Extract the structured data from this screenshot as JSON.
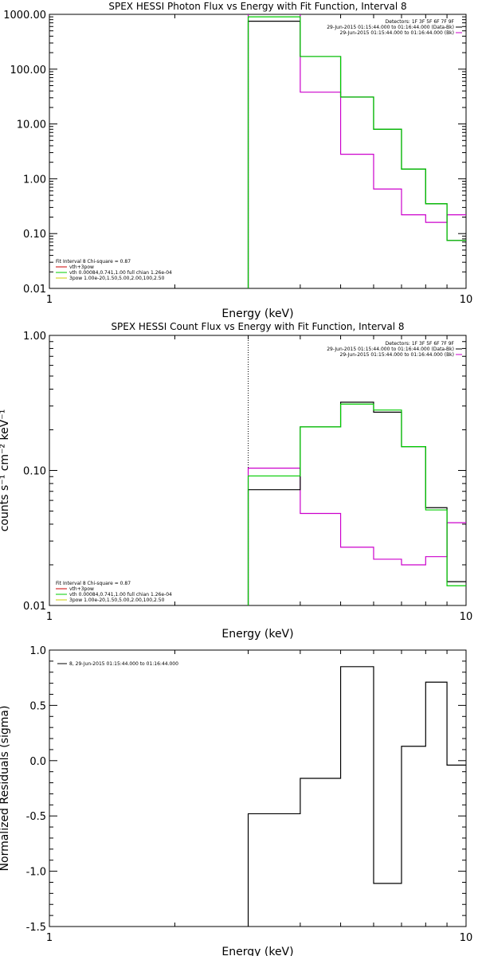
{
  "chart_data": [
    {
      "type": "line",
      "title": "SPEX HESSI Photon Flux vs Energy with Fit Function, Interval 8",
      "xlabel": "Energy (keV)",
      "ylabel": "",
      "xlog": true,
      "ylog": true,
      "xlim": [
        1,
        10
      ],
      "ylim": [
        0.01,
        1000
      ],
      "x_ticks": [
        "1",
        "10"
      ],
      "y_ticks": [
        "0.01",
        "0.10",
        "1.00",
        "10.00",
        "100.00",
        "1000.00"
      ],
      "info_lines": [
        "Detectors: 1F 3F 5F 6F 7F 9F",
        "29-Jun-2015 01:15:44.000 to 01:16:44.000 (Data-Bk)",
        "29-Jun-2015 01:15:44.000 to 01:16:44.000 (Bk)"
      ],
      "fit_lines": [
        "Fit Interval 8   Chi-square = 0.87",
        "vth+3pow",
        "vth 0.00084,0.741,1.00  full chian 1.26e-04",
        "3pow 1.00e-20,1.50,5.00,2.00,100,2.50"
      ],
      "bin_edges": [
        3,
        4,
        5,
        6,
        7,
        8,
        9,
        10
      ],
      "series": [
        {
          "name": "Data-Bk",
          "color": "#000000",
          "values": [
            750,
            170,
            31,
            8,
            1.5,
            0.35,
            0.075
          ]
        },
        {
          "name": "Bk",
          "color": "#cc00cc",
          "values": [
            1050,
            38,
            2.8,
            0.65,
            0.22,
            0.16,
            0.22
          ]
        },
        {
          "name": "vth+3pow",
          "color": "#00cc00",
          "values": [
            900,
            170,
            31,
            8,
            1.5,
            0.35,
            0.075
          ]
        }
      ]
    },
    {
      "type": "line",
      "title": "SPEX HESSI Count Flux vs Energy with Fit Function, Interval 8",
      "xlabel": "Energy (keV)",
      "ylabel": "counts s⁻¹ cm⁻² keV⁻¹",
      "xlog": true,
      "ylog": true,
      "xlim": [
        1,
        10
      ],
      "ylim": [
        0.01,
        1
      ],
      "x_ticks": [
        "1",
        "10"
      ],
      "y_ticks": [
        "0.01",
        "0.10",
        "1.00"
      ],
      "info_lines": [
        "Detectors: 1F 3F 5F 6F 7F 9F",
        "29-Jun-2015 01:15:44.000 to 01:16:44.000 (Data-Bk)",
        "29-Jun-2015 01:15:44.000 to 01:16:44.000 (Bk)"
      ],
      "fit_lines": [
        "Fit Interval 8   Chi-square = 0.87",
        "vth+3pow",
        "vth 0.00084,0.741,1.00  full chian 1.26e-04",
        "3pow 1.00e-20,1.50,5.00,2.00,100,2.50"
      ],
      "bin_edges": [
        3,
        4,
        5,
        6,
        7,
        8,
        9,
        10
      ],
      "series": [
        {
          "name": "Data-Bk",
          "color": "#000000",
          "values": [
            0.072,
            0.21,
            0.32,
            0.27,
            0.15,
            0.053,
            0.015
          ]
        },
        {
          "name": "Bk",
          "color": "#cc00cc",
          "values": [
            0.104,
            0.048,
            0.027,
            0.022,
            0.02,
            0.023,
            0.041
          ]
        },
        {
          "name": "vth+3pow",
          "color": "#00cc00",
          "values": [
            0.091,
            0.21,
            0.31,
            0.28,
            0.15,
            0.051,
            0.014
          ]
        }
      ]
    },
    {
      "type": "line",
      "title": "",
      "xlabel": "Energy (keV)",
      "ylabel": "Normalized Residuals (sigma)",
      "xlog": true,
      "ylog": false,
      "xlim": [
        1,
        10
      ],
      "ylim": [
        -1.5,
        1.0
      ],
      "x_ticks": [
        "1",
        "10"
      ],
      "y_ticks": [
        "-1.5",
        "-1.0",
        "-0.5",
        "0.0",
        "0.5",
        "1.0"
      ],
      "legend": "8, 29-Jun-2015 01:15:44.000 to 01:16:44.000",
      "bin_edges": [
        3,
        4,
        5,
        6,
        7,
        8,
        9,
        10
      ],
      "series": [
        {
          "name": "8, 29-Jun-2015 01:15:44.000 to 01:16:44.000",
          "color": "#000000",
          "values": [
            -0.48,
            -0.16,
            0.85,
            -1.11,
            0.13,
            0.71,
            -0.04
          ]
        }
      ]
    }
  ]
}
